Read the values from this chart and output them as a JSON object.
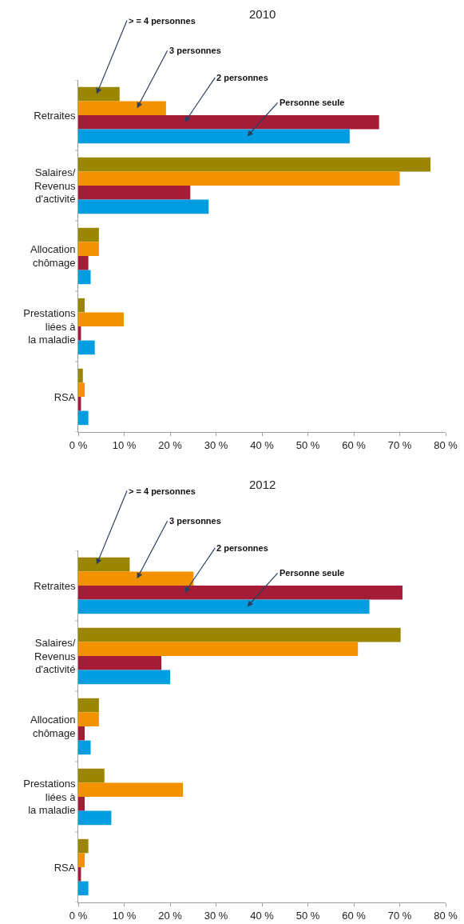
{
  "chart_data": [
    {
      "type": "bar",
      "orientation": "horizontal",
      "title": "2010",
      "categories": [
        "Retraites",
        "Salaires/\nRevenus\nd'activité",
        "Allocation\nchômage",
        "Prestations\nliées à\nla maladie",
        "RSA"
      ],
      "series": [
        {
          "name": "> = 4 personnes",
          "color": "#9a8600",
          "values": [
            9.0,
            76.7,
            4.5,
            1.4,
            1.0
          ]
        },
        {
          "name": "3 personnes",
          "color": "#f39200",
          "values": [
            19.1,
            70.0,
            4.5,
            9.9,
            1.4
          ]
        },
        {
          "name": "2 personnes",
          "color": "#a51c36",
          "values": [
            65.5,
            24.4,
            2.2,
            0.6,
            0.6
          ]
        },
        {
          "name": "Personne seule",
          "color": "#009ee0",
          "values": [
            59.1,
            28.4,
            2.7,
            3.6,
            2.2
          ]
        }
      ],
      "xlim": [
        0,
        80
      ],
      "xticks": [
        {
          "value": 0,
          "label": "0 %"
        },
        {
          "value": 10,
          "label": "10 %"
        },
        {
          "value": 20,
          "label": "20 %"
        },
        {
          "value": 30,
          "label": "30 %"
        },
        {
          "value": 40,
          "label": "40 %"
        },
        {
          "value": 50,
          "label": "50 %"
        },
        {
          "value": 60,
          "label": "60 %"
        },
        {
          "value": 70,
          "label": "70 %"
        },
        {
          "value": 80,
          "label": "80 %"
        }
      ],
      "legend": false
    },
    {
      "type": "bar",
      "orientation": "horizontal",
      "title": "2012",
      "categories": [
        "Retraites",
        "Salaires/\nRevenus\nd'activité",
        "Allocation\nchômage",
        "Prestations\nliées à\nla maladie",
        "RSA"
      ],
      "series": [
        {
          "name": "> = 4 personnes",
          "color": "#9a8600",
          "values": [
            11.2,
            70.2,
            4.5,
            5.7,
            2.2
          ]
        },
        {
          "name": "3 personnes",
          "color": "#f39200",
          "values": [
            25.1,
            60.9,
            4.5,
            22.8,
            1.4
          ]
        },
        {
          "name": "2 personnes",
          "color": "#a51c36",
          "values": [
            70.6,
            18.1,
            1.4,
            1.4,
            0.6
          ]
        },
        {
          "name": "Personne seule",
          "color": "#009ee0",
          "values": [
            63.4,
            20.0,
            2.7,
            7.2,
            2.2
          ]
        }
      ],
      "xlim": [
        0,
        80
      ],
      "xticks": [
        {
          "value": 0,
          "label": "0 %"
        },
        {
          "value": 10,
          "label": "10 %"
        },
        {
          "value": 20,
          "label": "20 %"
        },
        {
          "value": 30,
          "label": "30 %"
        },
        {
          "value": 40,
          "label": "40 %"
        },
        {
          "value": 50,
          "label": "50 %"
        },
        {
          "value": 60,
          "label": "60 %"
        },
        {
          "value": 70,
          "label": "70 %"
        },
        {
          "value": 80,
          "label": "80 %"
        }
      ],
      "legend": false
    }
  ]
}
